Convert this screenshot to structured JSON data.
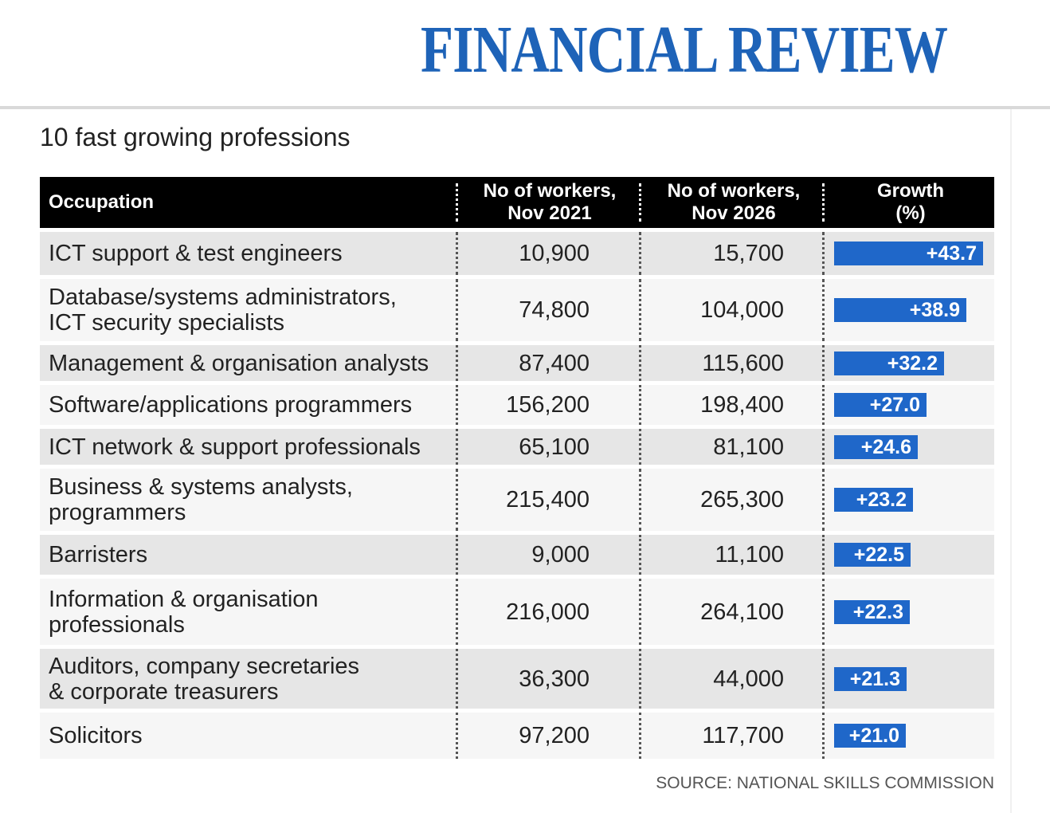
{
  "masthead": {
    "logo_text": "FINANCIAL REVIEW",
    "brand_color": "#1e63b8"
  },
  "page": {
    "title": "10 fast growing professions"
  },
  "chart_data": {
    "type": "table",
    "title": "10 fast growing professions",
    "columns": [
      "Occupation",
      "No of workers, Nov 2021",
      "No of workers, Nov 2026",
      "Growth (%)"
    ],
    "header": {
      "occupation": "Occupation",
      "workers_2021": [
        "No of workers,",
        "Nov 2021"
      ],
      "workers_2026": [
        "No of workers,",
        "Nov 2026"
      ],
      "growth": [
        "Growth",
        "(%)"
      ]
    },
    "rows": [
      {
        "occupation": [
          "ICT support & test engineers"
        ],
        "workers_2021": "10,900",
        "workers_2026": "15,700",
        "growth": 43.7,
        "growth_label": "+43.7"
      },
      {
        "occupation": [
          "Database/systems administrators,",
          "ICT security specialists"
        ],
        "workers_2021": "74,800",
        "workers_2026": "104,000",
        "growth": 38.9,
        "growth_label": "+38.9"
      },
      {
        "occupation": [
          "Management & organisation analysts"
        ],
        "workers_2021": "87,400",
        "workers_2026": "115,600",
        "growth": 32.2,
        "growth_label": "+32.2"
      },
      {
        "occupation": [
          "Software/applications programmers"
        ],
        "workers_2021": "156,200",
        "workers_2026": "198,400",
        "growth": 27.0,
        "growth_label": "+27.0"
      },
      {
        "occupation": [
          "ICT network & support professionals"
        ],
        "workers_2021": "65,100",
        "workers_2026": "81,100",
        "growth": 24.6,
        "growth_label": "+24.6"
      },
      {
        "occupation": [
          "Business & systems analysts,",
          "programmers"
        ],
        "workers_2021": "215,400",
        "workers_2026": "265,300",
        "growth": 23.2,
        "growth_label": "+23.2"
      },
      {
        "occupation": [
          "Barristers"
        ],
        "workers_2021": "9,000",
        "workers_2026": "11,100",
        "growth": 22.5,
        "growth_label": "+22.5"
      },
      {
        "occupation": [
          "Information & organisation",
          "professionals"
        ],
        "workers_2021": "216,000",
        "workers_2026": "264,100",
        "growth": 22.3,
        "growth_label": "+22.3"
      },
      {
        "occupation": [
          "Auditors, company secretaries",
          "& corporate treasurers"
        ],
        "workers_2021": "36,300",
        "workers_2026": "44,000",
        "growth": 21.3,
        "growth_label": "+21.3"
      },
      {
        "occupation": [
          "Solicitors"
        ],
        "workers_2021": "97,200",
        "workers_2026": "117,700",
        "growth": 21.0,
        "growth_label": "+21.0"
      }
    ],
    "bar_color": "#1f67c9",
    "source": "SOURCE: NATIONAL SKILLS COMMISSION"
  }
}
